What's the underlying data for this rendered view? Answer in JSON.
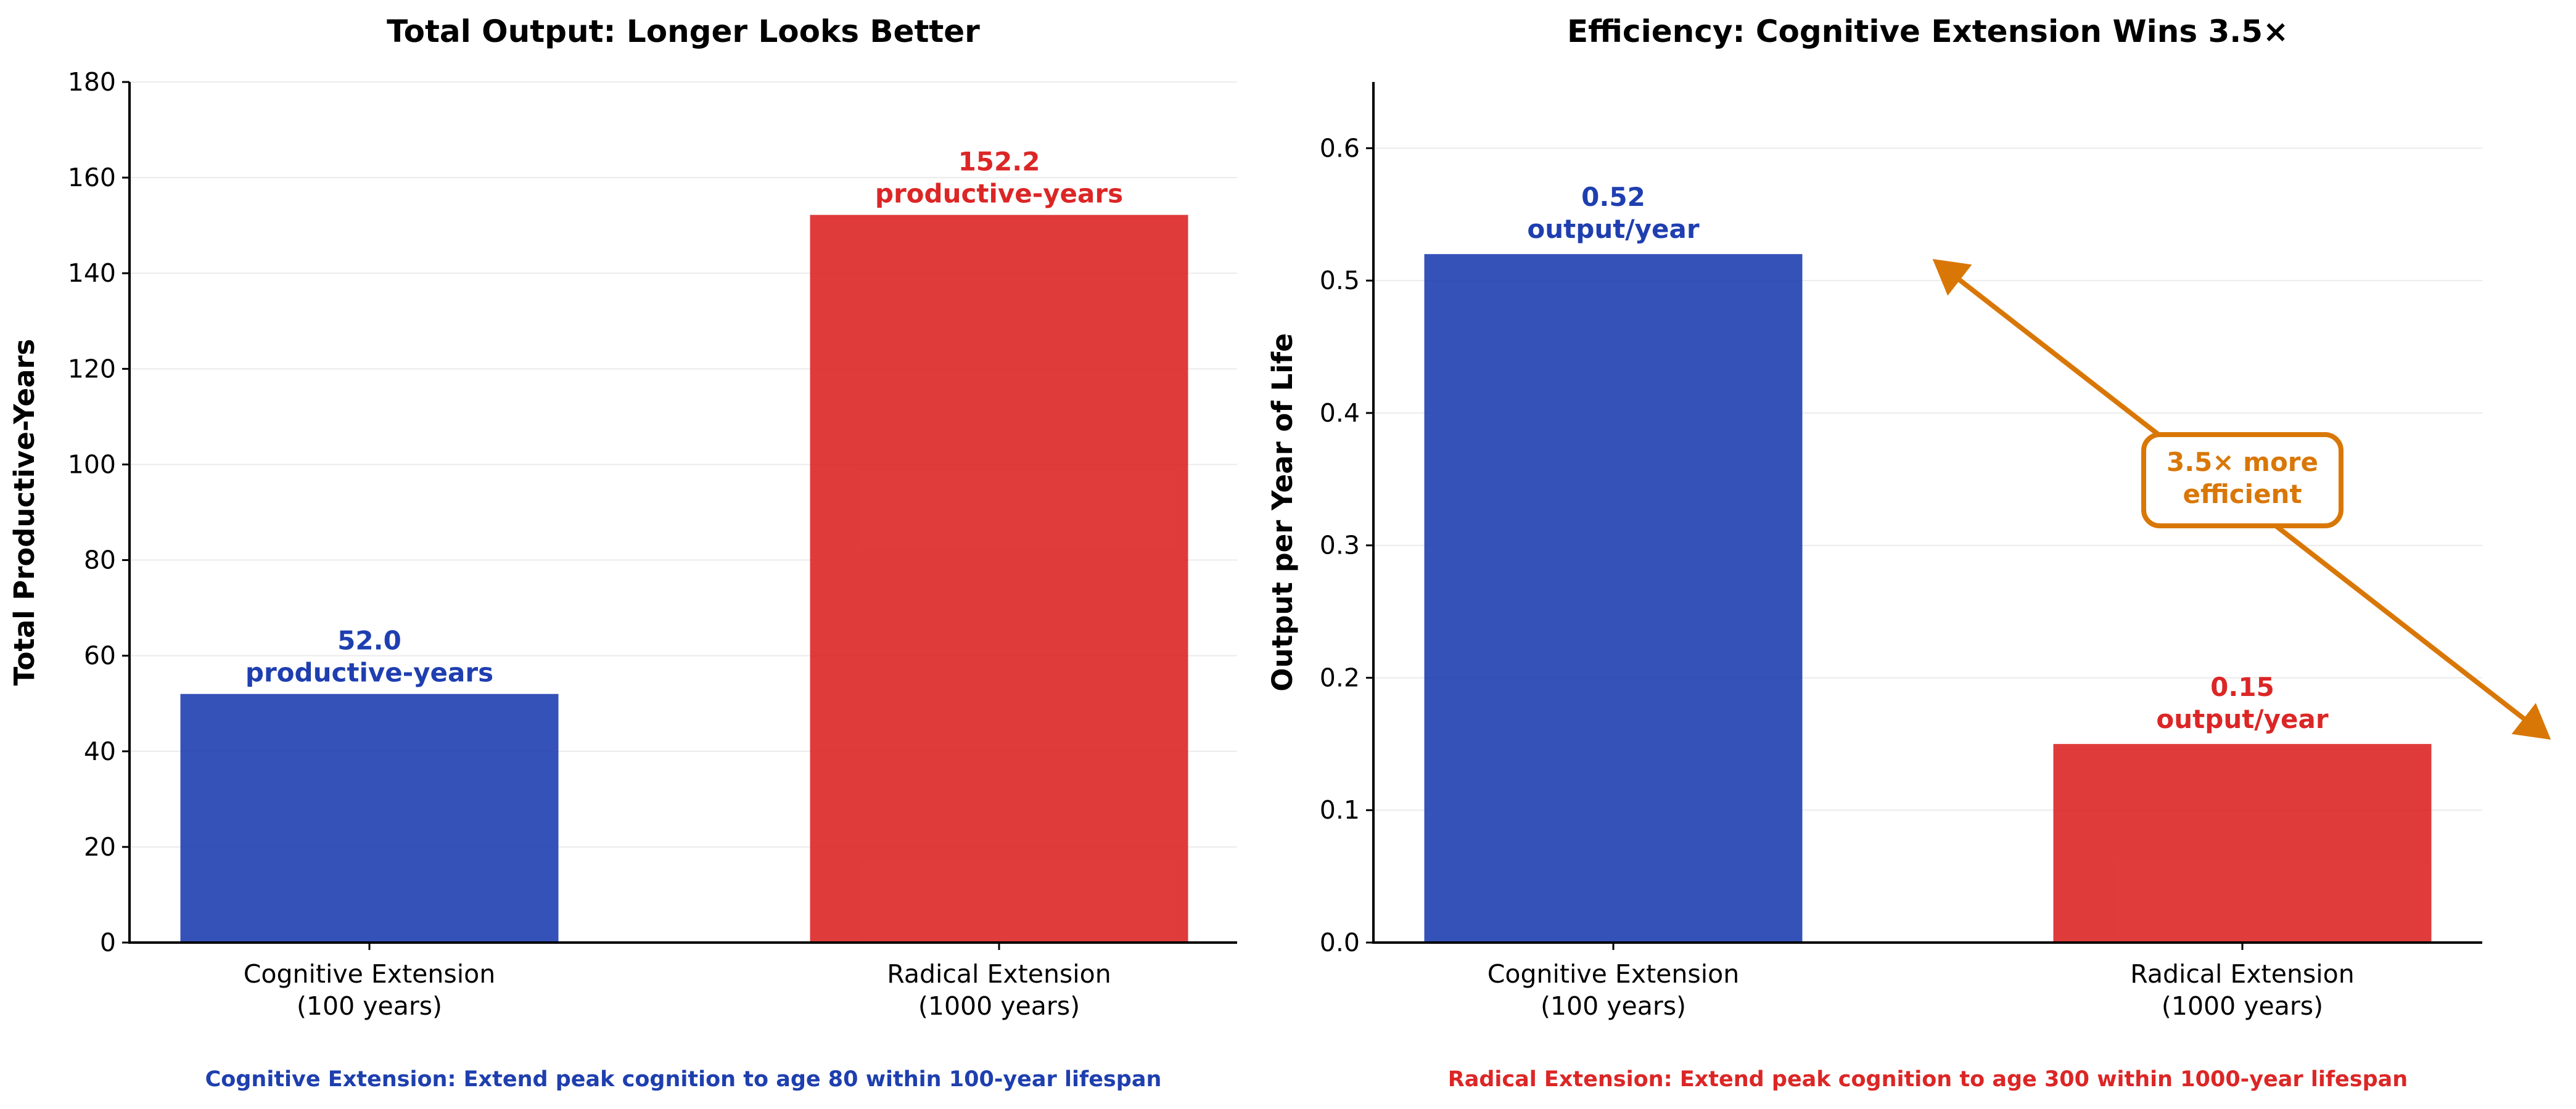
{
  "chart_data": [
    {
      "type": "bar",
      "title": "Total Output: Longer Looks Better",
      "xlabel": "",
      "ylabel": "Total Productive-Years",
      "categories": [
        "Cognitive Extension\n(100 years)",
        "Radical Extension\n(1000 years)"
      ],
      "values": [
        52.0,
        152.2
      ],
      "data_labels": [
        "52.0\nproductive-years",
        "152.2\nproductive-years"
      ],
      "colors": [
        "#1f3fb0",
        "#dc2626"
      ],
      "ylim": [
        0,
        180
      ],
      "yticks": [
        0,
        20,
        40,
        60,
        80,
        100,
        120,
        140,
        160,
        180
      ],
      "grid": true,
      "footnote": "Cognitive Extension: Extend peak cognition to age 80 within 100-year lifespan",
      "footnote_color": "#1e3fae"
    },
    {
      "type": "bar",
      "title": "Efficiency: Cognitive Extension Wins 3.5×",
      "xlabel": "",
      "ylabel": "Output per Year of Life",
      "categories": [
        "Cognitive Extension\n(100 years)",
        "Radical Extension\n(1000 years)"
      ],
      "values": [
        0.52,
        0.15
      ],
      "data_labels": [
        "0.52\noutput/year",
        "0.15\noutput/year"
      ],
      "colors": [
        "#1f3fb0",
        "#dc2626"
      ],
      "ylim": [
        0,
        0.65
      ],
      "yticks": [
        0.0,
        0.1,
        0.2,
        0.3,
        0.4,
        0.5,
        0.6
      ],
      "grid": true,
      "annotation": {
        "text": "3.5× more\nefficient",
        "color": "#d97706",
        "arrow": "double-headed"
      },
      "footnote": "Radical Extension: Extend peak cognition to age 300 within 1000-year lifespan",
      "footnote_color": "#dc2626"
    }
  ]
}
